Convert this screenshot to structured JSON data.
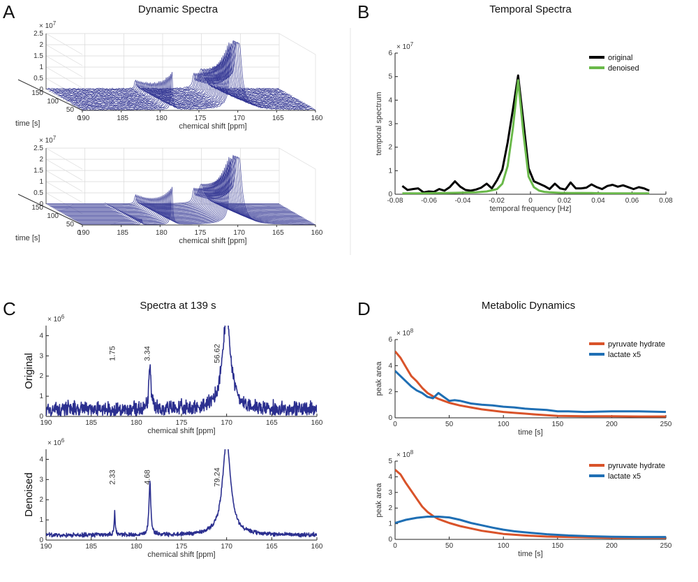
{
  "figure": {
    "panel_labels": [
      "A",
      "B",
      "C",
      "D"
    ],
    "titles": {
      "A": "Dynamic Spectra",
      "B": "Temporal Spectra",
      "C": "Spectra at 139 s",
      "D": "Metabolic Dynamics"
    }
  },
  "chart_data": [
    {
      "id": "A-top",
      "type": "surface3d",
      "title": "Dynamic Spectra",
      "xlabel": "chemical shift [ppm]",
      "ylabel": "time [s]",
      "x_ticks": [
        "190",
        "185",
        "180",
        "175",
        "170",
        "165",
        "160"
      ],
      "y_ticks": [
        "150",
        "100",
        "50",
        "0"
      ],
      "z_ticks": [
        "0",
        "0.5",
        "1",
        "1.5",
        "2",
        "2.5"
      ],
      "z_exponent": "× 10^7",
      "peaks_ppm": [
        182.4,
        178.5,
        171.0,
        170.0
      ],
      "style": "noisy",
      "color": "#2b2f8f"
    },
    {
      "id": "A-bottom",
      "type": "surface3d",
      "xlabel": "chemical shift [ppm]",
      "ylabel": "time [s]",
      "x_ticks": [
        "190",
        "185",
        "180",
        "175",
        "170",
        "165",
        "160"
      ],
      "y_ticks": [
        "150",
        "100",
        "50",
        "0"
      ],
      "z_ticks": [
        "0",
        "0.5",
        "1",
        "1.5",
        "2",
        "2.5"
      ],
      "z_exponent": "× 10^7",
      "peaks_ppm": [
        182.4,
        178.5,
        171.0,
        170.0
      ],
      "style": "denoised",
      "color": "#2b2f8f"
    },
    {
      "id": "B",
      "type": "line",
      "title": "Temporal Spectra",
      "xlabel": "temporal frequency [Hz]",
      "ylabel": "temporal spectrum",
      "xlim": [
        -0.08,
        0.08
      ],
      "ylim": [
        0,
        6
      ],
      "y_exponent": "× 10^7",
      "x_ticks": [
        "-0.08",
        "-0.06",
        "-0.04",
        "-0.02",
        "0",
        "0.02",
        "0.04",
        "0.06",
        "0.08"
      ],
      "y_ticks": [
        "0",
        "1",
        "2",
        "3",
        "4",
        "5",
        "6"
      ],
      "legend": "top-right",
      "series": [
        {
          "name": "original",
          "color": "#000000",
          "x": [
            -0.0757,
            -0.0726,
            -0.0695,
            -0.0664,
            -0.0632,
            -0.0601,
            -0.057,
            -0.0539,
            -0.0508,
            -0.0477,
            -0.0446,
            -0.0415,
            -0.0384,
            -0.0353,
            -0.0322,
            -0.0291,
            -0.0259,
            -0.0228,
            -0.0197,
            -0.0166,
            -0.0135,
            -0.0104,
            -0.0073,
            -0.0042,
            -0.0011,
            0.002,
            0.0051,
            0.0082,
            0.0113,
            0.0144,
            0.0175,
            0.0206,
            0.0237,
            0.0268,
            0.0299,
            0.033,
            0.0361,
            0.0392,
            0.0423,
            0.0454,
            0.0485,
            0.0516,
            0.0547,
            0.0578,
            0.0609,
            0.064,
            0.0671,
            0.0702
          ],
          "values": [
            0.35,
            0.18,
            0.22,
            0.25,
            0.08,
            0.12,
            0.1,
            0.22,
            0.15,
            0.3,
            0.55,
            0.32,
            0.18,
            0.15,
            0.2,
            0.28,
            0.45,
            0.25,
            0.6,
            1.05,
            2.2,
            3.6,
            5.05,
            3.1,
            1.1,
            0.55,
            0.45,
            0.35,
            0.22,
            0.45,
            0.25,
            0.2,
            0.5,
            0.25,
            0.25,
            0.28,
            0.42,
            0.3,
            0.22,
            0.35,
            0.4,
            0.32,
            0.38,
            0.3,
            0.22,
            0.3,
            0.25,
            0.15
          ]
        },
        {
          "name": "denoised",
          "color": "#6ab94a",
          "x": [
            -0.0757,
            -0.0695,
            -0.0632,
            -0.057,
            -0.0508,
            -0.0446,
            -0.0384,
            -0.0322,
            -0.0259,
            -0.0197,
            -0.0166,
            -0.0135,
            -0.0104,
            -0.0073,
            -0.0042,
            -0.0011,
            0.002,
            0.0051,
            0.0082,
            0.0113,
            0.0175,
            0.0237,
            0.0299,
            0.0361,
            0.0423,
            0.0485,
            0.0547,
            0.0609,
            0.0671,
            0.0702
          ],
          "values": [
            0.04,
            0.04,
            0.04,
            0.05,
            0.05,
            0.06,
            0.07,
            0.08,
            0.12,
            0.22,
            0.45,
            1.2,
            2.8,
            4.85,
            2.6,
            0.75,
            0.3,
            0.15,
            0.1,
            0.08,
            0.06,
            0.05,
            0.05,
            0.05,
            0.04,
            0.04,
            0.04,
            0.04,
            0.04,
            0.04
          ]
        }
      ]
    },
    {
      "id": "C-top",
      "type": "line",
      "title": "Spectra at 139 s",
      "ylabel": "Original",
      "xlabel": "chemical shift [ppm]",
      "xlim": [
        190,
        160
      ],
      "ylim": [
        0,
        4.5
      ],
      "y_exponent": "× 10^6",
      "x_ticks": [
        "190",
        "185",
        "180",
        "175",
        "170",
        "165",
        "160"
      ],
      "y_ticks": [
        "0",
        "1",
        "2",
        "3",
        "4"
      ],
      "annotations": [
        {
          "text": "1.75",
          "ppm": 182.4
        },
        {
          "text": "3.34",
          "ppm": 178.5
        },
        {
          "text": "56.62",
          "ppm": 170.8
        }
      ],
      "series": [
        {
          "name": "original",
          "color": "#2b2f8f",
          "baseline": 0.35,
          "noise": 0.35,
          "peaks": [
            {
              "ppm": 178.5,
              "height": 2.25,
              "width": 0.12
            },
            {
              "ppm": 170.0,
              "height": 4.6,
              "width": 0.55
            }
          ]
        }
      ]
    },
    {
      "id": "C-bottom",
      "type": "line",
      "ylabel": "Denoised",
      "xlabel": "chemical shift [ppm]",
      "xlim": [
        190,
        160
      ],
      "ylim": [
        0,
        4.5
      ],
      "y_exponent": "× 10^6",
      "x_ticks": [
        "190",
        "185",
        "180",
        "175",
        "170",
        "165",
        "160"
      ],
      "y_ticks": [
        "0",
        "1",
        "2",
        "3",
        "4"
      ],
      "annotations": [
        {
          "text": "2.33",
          "ppm": 182.4
        },
        {
          "text": "4.68",
          "ppm": 178.5
        },
        {
          "text": "79.24",
          "ppm": 170.8
        }
      ],
      "series": [
        {
          "name": "denoised",
          "color": "#2b2f8f",
          "baseline": 0.25,
          "noise": 0.09,
          "peaks": [
            {
              "ppm": 182.4,
              "height": 1.1,
              "width": 0.07
            },
            {
              "ppm": 178.5,
              "height": 2.6,
              "width": 0.12
            },
            {
              "ppm": 170.0,
              "height": 4.6,
              "width": 0.55
            }
          ]
        }
      ]
    },
    {
      "id": "D-top",
      "type": "line",
      "title": "Metabolic Dynamics",
      "xlabel": "time [s]",
      "ylabel": "peak area",
      "xlim": [
        0,
        250
      ],
      "ylim": [
        0,
        6
      ],
      "y_exponent": "× 10^8",
      "x_ticks": [
        "0",
        "50",
        "100",
        "150",
        "200",
        "250"
      ],
      "y_ticks": [
        "0",
        "2",
        "4",
        "6"
      ],
      "legend": "top-right",
      "series": [
        {
          "name": "pyruvate hydrate",
          "color": "#d9532a",
          "x": [
            0,
            5,
            10,
            15,
            20,
            25,
            30,
            35,
            40,
            50,
            60,
            70,
            80,
            90,
            100,
            110,
            120,
            130,
            140,
            150,
            175,
            200,
            225,
            250
          ],
          "values": [
            5.1,
            4.6,
            3.9,
            3.2,
            2.8,
            2.3,
            1.9,
            1.65,
            1.45,
            1.15,
            0.95,
            0.8,
            0.65,
            0.55,
            0.45,
            0.38,
            0.32,
            0.25,
            0.2,
            0.15,
            0.12,
            0.12,
            0.1,
            0.1
          ]
        },
        {
          "name": "lactate x5",
          "color": "#1f6fb4",
          "x": [
            0,
            5,
            10,
            15,
            20,
            25,
            30,
            35,
            40,
            45,
            50,
            55,
            60,
            70,
            80,
            90,
            100,
            110,
            120,
            130,
            140,
            150,
            160,
            175,
            200,
            225,
            250
          ],
          "values": [
            3.6,
            3.2,
            2.8,
            2.4,
            2.1,
            1.9,
            1.6,
            1.5,
            1.9,
            1.6,
            1.3,
            1.35,
            1.3,
            1.1,
            1.0,
            0.95,
            0.85,
            0.8,
            0.7,
            0.65,
            0.6,
            0.5,
            0.5,
            0.45,
            0.5,
            0.5,
            0.45
          ]
        }
      ]
    },
    {
      "id": "D-bottom",
      "type": "line",
      "xlabel": "time [s]",
      "ylabel": "peak area",
      "xlim": [
        0,
        250
      ],
      "ylim": [
        0,
        5
      ],
      "y_exponent": "× 10^8",
      "x_ticks": [
        "0",
        "50",
        "100",
        "150",
        "200",
        "250"
      ],
      "y_ticks": [
        "0",
        "1",
        "2",
        "3",
        "4",
        "5"
      ],
      "legend": "top-right",
      "series": [
        {
          "name": "pyruvate hydrate",
          "color": "#d9532a",
          "x": [
            0,
            5,
            10,
            15,
            20,
            25,
            30,
            35,
            40,
            50,
            60,
            70,
            80,
            90,
            100,
            120,
            140,
            160,
            180,
            200,
            225,
            250
          ],
          "values": [
            4.45,
            4.15,
            3.6,
            3.1,
            2.6,
            2.1,
            1.75,
            1.5,
            1.3,
            1.05,
            0.85,
            0.7,
            0.55,
            0.45,
            0.35,
            0.25,
            0.18,
            0.15,
            0.12,
            0.1,
            0.1,
            0.1
          ]
        },
        {
          "name": "lactate x5",
          "color": "#1f6fb4",
          "x": [
            0,
            10,
            20,
            30,
            40,
            50,
            60,
            70,
            80,
            90,
            100,
            110,
            120,
            140,
            160,
            180,
            200,
            225,
            250
          ],
          "values": [
            1.05,
            1.25,
            1.38,
            1.45,
            1.45,
            1.4,
            1.25,
            1.05,
            0.9,
            0.75,
            0.62,
            0.52,
            0.45,
            0.33,
            0.25,
            0.2,
            0.17,
            0.15,
            0.15
          ]
        }
      ]
    }
  ]
}
